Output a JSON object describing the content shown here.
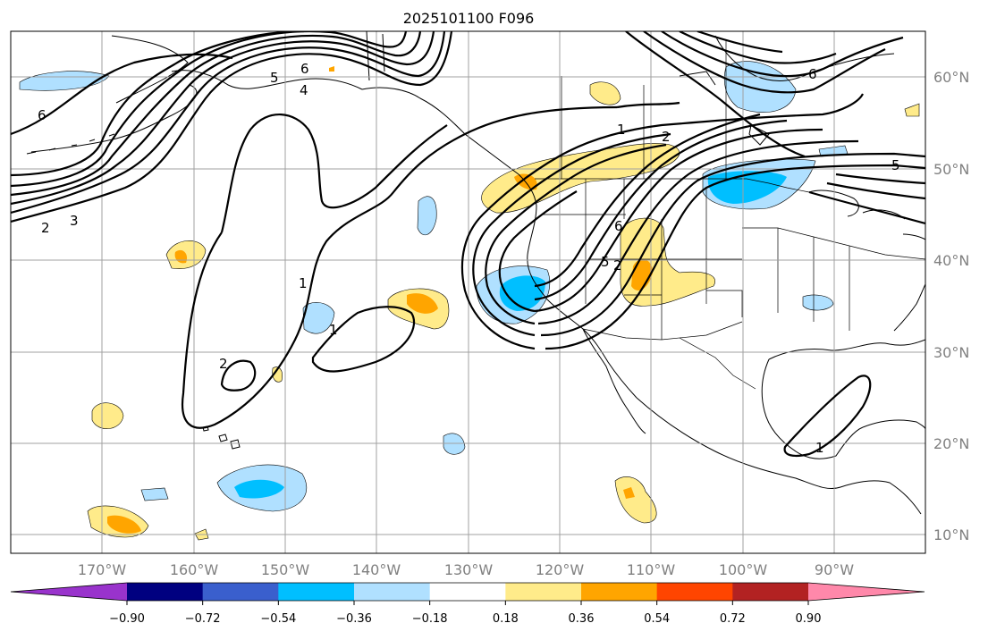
{
  "title": "2025101100 F096",
  "longitude_labels": [
    "170°W",
    "160°W",
    "150°W",
    "140°W",
    "130°W",
    "120°W",
    "110°W",
    "100°W",
    "90°W"
  ],
  "latitude_labels": [
    "60°N",
    "50°N",
    "40°N",
    "30°N",
    "20°N",
    "10°N"
  ],
  "colorbar": {
    "ticks": [
      "−0.90",
      "−0.72",
      "−0.54",
      "−0.36",
      "−0.18",
      "0.18",
      "0.36",
      "0.54",
      "0.72",
      "0.90"
    ],
    "colors": [
      "#9933cc",
      "#000080",
      "#3a5fcd",
      "#00bfff",
      "#b0e0ff",
      "#ffffff",
      "#ffeb8a",
      "#ffa500",
      "#ff4500",
      "#b22222",
      "#ff88aa"
    ]
  },
  "contour_labels": [
    {
      "id": "w6",
      "text": "6"
    },
    {
      "id": "w3",
      "text": "3"
    },
    {
      "id": "w2",
      "text": "2"
    },
    {
      "id": "n6",
      "text": "6"
    },
    {
      "id": "n4",
      "text": "4"
    },
    {
      "id": "n5",
      "text": "5"
    },
    {
      "id": "p1a",
      "text": "1"
    },
    {
      "id": "p1b",
      "text": "1"
    },
    {
      "id": "p2",
      "text": "2"
    },
    {
      "id": "e1",
      "text": "1"
    },
    {
      "id": "e2",
      "text": "2"
    },
    {
      "id": "ne6",
      "text": "6"
    },
    {
      "id": "e5",
      "text": "5"
    },
    {
      "id": "s6",
      "text": "6"
    },
    {
      "id": "s5",
      "text": "5"
    },
    {
      "id": "s2",
      "text": "2"
    },
    {
      "id": "gm1",
      "text": "1"
    }
  ]
}
